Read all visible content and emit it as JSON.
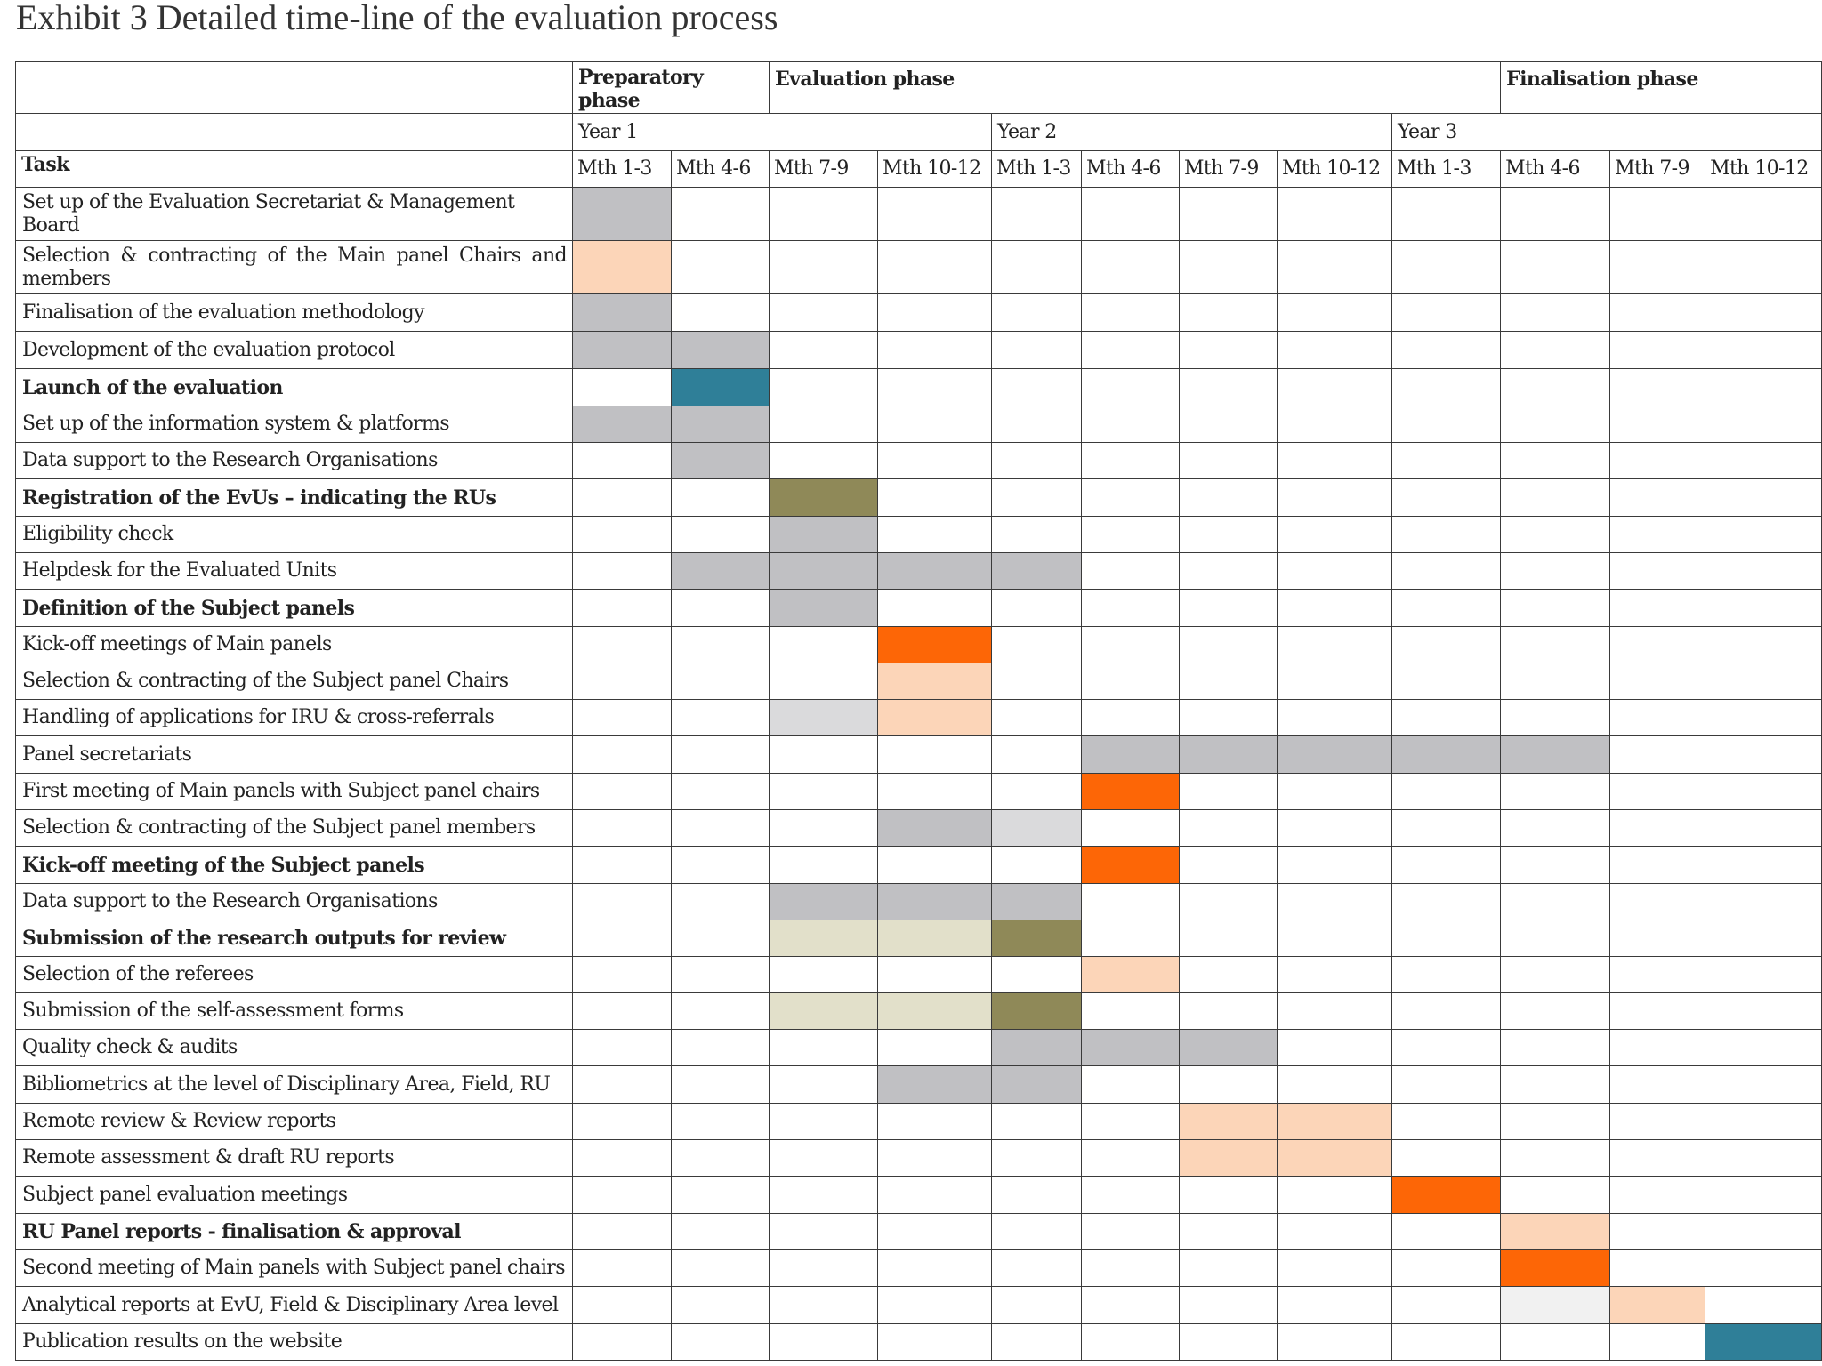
{
  "title": "Exhibit 3 Detailed time-line of the evaluation process",
  "colors": {
    "grey": "#c0c0c3",
    "light_grey": "#dadadc",
    "very_light_grey": "#f1f1f1",
    "peach": "#fcd5b8",
    "orange": "#fd6606",
    "teal": "#2f7f98",
    "olive": "#8f8958",
    "khaki": "#e2e0ca"
  },
  "phases": [
    {
      "label": "Preparatory phase",
      "span": 2
    },
    {
      "label": "Evaluation phase",
      "span": 7
    },
    {
      "label": "Finalisation phase",
      "span": 3
    }
  ],
  "years": [
    {
      "label": "Year 1",
      "span": 4
    },
    {
      "label": "Year 2",
      "span": 4
    },
    {
      "label": "Year 3",
      "span": 4
    }
  ],
  "task_header": "Task",
  "months": [
    "Mth 1-3",
    "Mth 4-6",
    "Mth 7-9",
    "Mth 10-12",
    "Mth 1-3",
    "Mth 4-6",
    "Mth 7-9",
    "Mth 10-12",
    "Mth 1-3",
    "Mth 4-6",
    "Mth 7-9",
    "Mth 10-12"
  ],
  "tasks": [
    {
      "name": "Set up of the Evaluation Secretariat & Management Board",
      "bold": false,
      "bars": [
        {
          "start": 0,
          "end": 0,
          "color": "grey"
        }
      ]
    },
    {
      "name": "Selection & contracting of the Main panel Chairs and members",
      "bold": false,
      "bars": [
        {
          "start": 0,
          "end": 0,
          "color": "peach"
        }
      ]
    },
    {
      "name": "Finalisation of the evaluation methodology",
      "bold": false,
      "bars": [
        {
          "start": 0,
          "end": 0,
          "color": "grey"
        }
      ]
    },
    {
      "name": "Development of the evaluation protocol",
      "bold": false,
      "bars": [
        {
          "start": 0,
          "end": 1,
          "color": "grey"
        }
      ]
    },
    {
      "name": "Launch of the evaluation",
      "bold": true,
      "bars": [
        {
          "start": 1,
          "end": 1,
          "color": "teal"
        }
      ]
    },
    {
      "name": "Set up of the information system & platforms",
      "bold": false,
      "bars": [
        {
          "start": 0,
          "end": 1,
          "color": "grey"
        }
      ]
    },
    {
      "name": "Data support to the Research Organisations",
      "bold": false,
      "bars": [
        {
          "start": 1,
          "end": 1,
          "color": "grey"
        }
      ]
    },
    {
      "name": "Registration of the EvUs – indicating the RUs",
      "bold": true,
      "bars": [
        {
          "start": 2,
          "end": 2,
          "color": "olive"
        }
      ]
    },
    {
      "name": "Eligibility check",
      "bold": false,
      "bars": [
        {
          "start": 2,
          "end": 2,
          "color": "grey"
        }
      ]
    },
    {
      "name": "Helpdesk for the Evaluated Units",
      "bold": false,
      "bars": [
        {
          "start": 1,
          "end": 4,
          "color": "grey"
        }
      ]
    },
    {
      "name": "Definition of the Subject panels",
      "bold": true,
      "bars": [
        {
          "start": 2,
          "end": 2,
          "color": "grey"
        }
      ]
    },
    {
      "name": "Kick-off meetings of Main panels",
      "bold": false,
      "bars": [
        {
          "start": 3,
          "end": 3,
          "color": "orange"
        }
      ]
    },
    {
      "name": "Selection & contracting of the Subject panel Chairs",
      "bold": false,
      "bars": [
        {
          "start": 3,
          "end": 3,
          "color": "peach"
        }
      ]
    },
    {
      "name": "Handling of applications for IRU & cross-referrals",
      "bold": false,
      "bars": [
        {
          "start": 2,
          "end": 2,
          "color": "light_grey"
        },
        {
          "start": 3,
          "end": 3,
          "color": "peach"
        }
      ]
    },
    {
      "name": "Panel secretariats",
      "bold": false,
      "bars": [
        {
          "start": 5,
          "end": 9,
          "color": "grey"
        }
      ]
    },
    {
      "name": "First meeting of Main panels with Subject panel chairs",
      "bold": false,
      "bars": [
        {
          "start": 5,
          "end": 5,
          "color": "orange"
        }
      ]
    },
    {
      "name": "Selection & contracting of the Subject panel members",
      "bold": false,
      "bars": [
        {
          "start": 3,
          "end": 3,
          "color": "grey"
        },
        {
          "start": 4,
          "end": 4,
          "color": "light_grey"
        }
      ]
    },
    {
      "name": "Kick-off meeting of the Subject panels",
      "bold": true,
      "bars": [
        {
          "start": 5,
          "end": 5,
          "color": "orange"
        }
      ]
    },
    {
      "name": "Data support to the Research Organisations",
      "bold": false,
      "bars": [
        {
          "start": 2,
          "end": 4,
          "color": "grey"
        }
      ]
    },
    {
      "name": "Submission of the research outputs for review",
      "bold": true,
      "bars": [
        {
          "start": 2,
          "end": 3,
          "color": "khaki"
        },
        {
          "start": 4,
          "end": 4,
          "color": "olive"
        }
      ]
    },
    {
      "name": "Selection of the referees",
      "bold": false,
      "bars": [
        {
          "start": 5,
          "end": 5,
          "color": "peach"
        }
      ]
    },
    {
      "name": "Submission of the self-assessment forms",
      "bold": false,
      "bars": [
        {
          "start": 2,
          "end": 3,
          "color": "khaki"
        },
        {
          "start": 4,
          "end": 4,
          "color": "olive"
        }
      ]
    },
    {
      "name": "Quality check & audits",
      "bold": false,
      "bars": [
        {
          "start": 4,
          "end": 6,
          "color": "grey"
        }
      ]
    },
    {
      "name": "Bibliometrics at the level of Disciplinary Area, Field, RU",
      "bold": false,
      "bars": [
        {
          "start": 3,
          "end": 4,
          "color": "grey"
        }
      ]
    },
    {
      "name": "Remote review & Review reports",
      "bold": false,
      "bars": [
        {
          "start": 6,
          "end": 7,
          "color": "peach"
        }
      ]
    },
    {
      "name": "Remote assessment & draft RU reports",
      "bold": false,
      "bars": [
        {
          "start": 6,
          "end": 7,
          "color": "peach"
        }
      ]
    },
    {
      "name": "Subject panel evaluation meetings",
      "bold": false,
      "bars": [
        {
          "start": 8,
          "end": 8,
          "color": "orange"
        }
      ]
    },
    {
      "name": "RU Panel reports - finalisation & approval",
      "bold": true,
      "bars": [
        {
          "start": 9,
          "end": 9,
          "color": "peach"
        }
      ]
    },
    {
      "name": "Second meeting of Main panels with Subject panel chairs",
      "bold": false,
      "bars": [
        {
          "start": 9,
          "end": 9,
          "color": "orange"
        }
      ]
    },
    {
      "name": "Analytical reports at EvU, Field & Disciplinary Area level",
      "bold": false,
      "bars": [
        {
          "start": 9,
          "end": 9,
          "color": "very_light_grey"
        },
        {
          "start": 10,
          "end": 10,
          "color": "peach"
        }
      ]
    },
    {
      "name": "Publication results on the website",
      "bold": false,
      "bars": [
        {
          "start": 11,
          "end": 11,
          "color": "teal"
        }
      ]
    }
  ]
}
